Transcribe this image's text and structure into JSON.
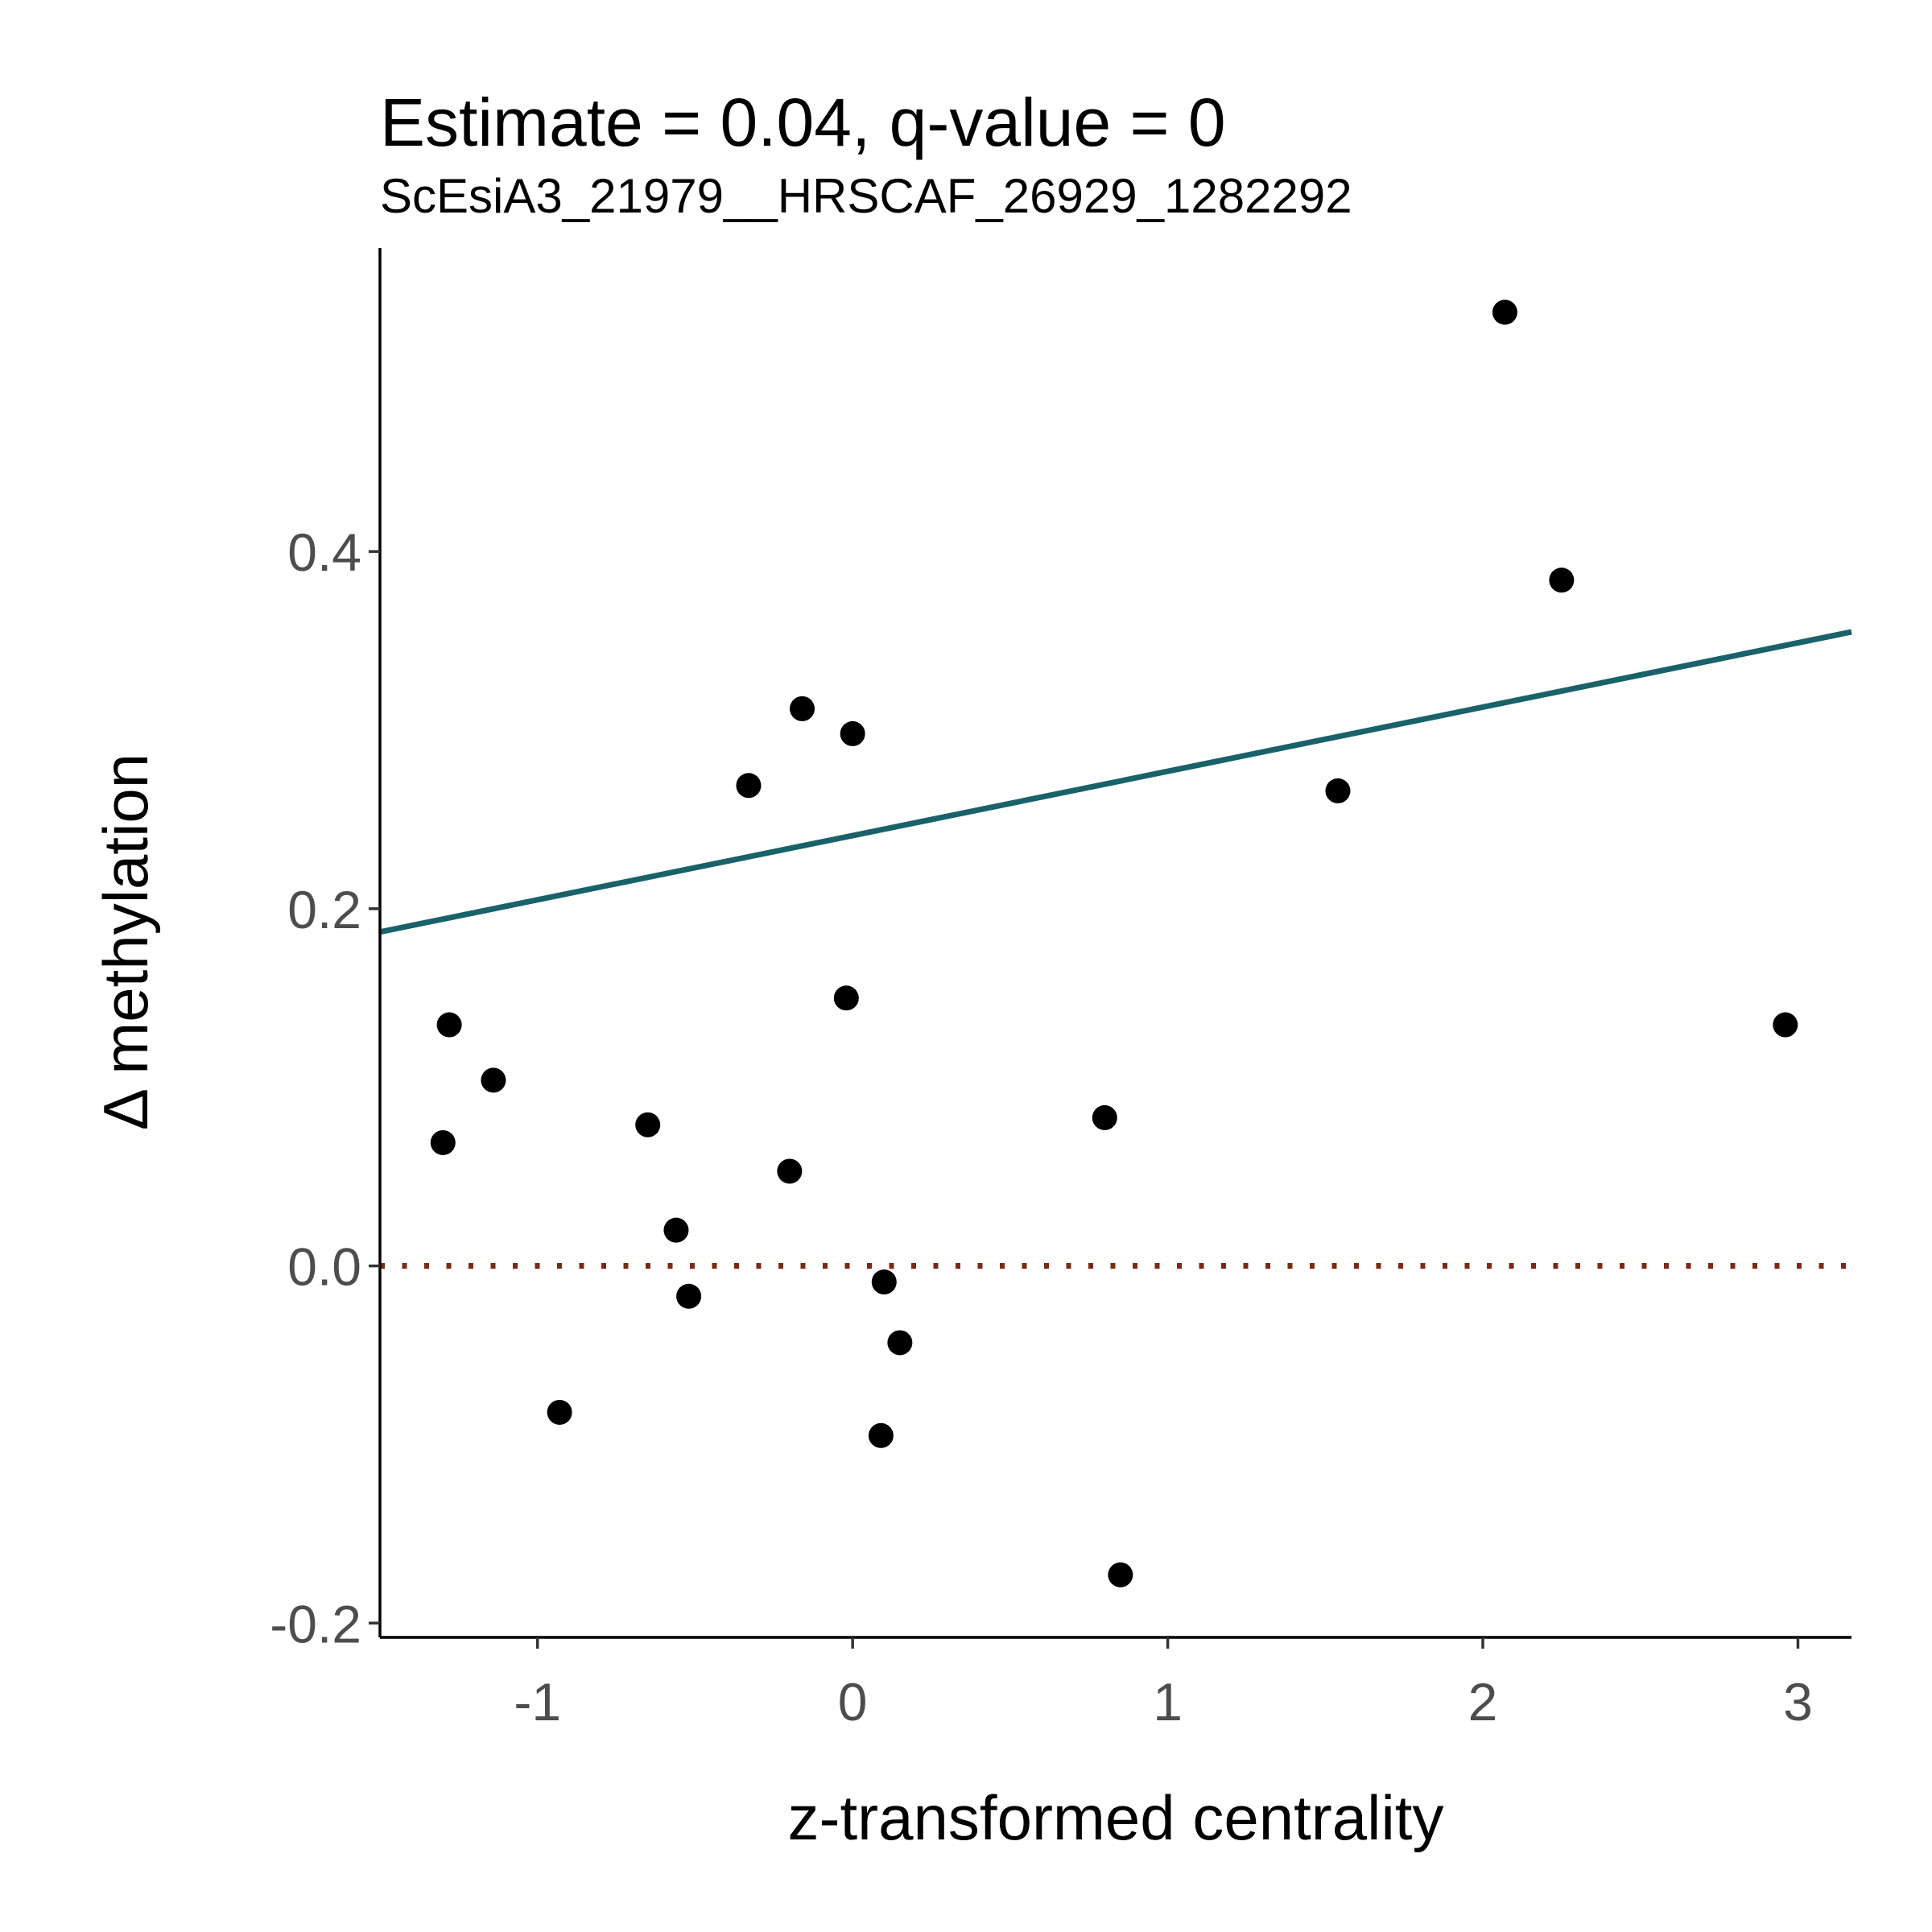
{
  "chart_data": {
    "type": "scatter",
    "title": "Estimate = 0.04, q-value = 0",
    "subtitle": "ScEsiA3_21979__HRSCAF_26929_1282292",
    "xlabel": "z-transformed centrality",
    "ylabel": "Δ methylation",
    "xlim": [
      -1.5,
      3.17
    ],
    "ylim": [
      -0.208,
      0.57
    ],
    "x_ticks": [
      -1,
      0,
      1,
      2,
      3
    ],
    "x_tick_labels": [
      "-1",
      "0",
      "1",
      "2",
      "3"
    ],
    "y_ticks": [
      -0.2,
      0.0,
      0.2,
      0.4
    ],
    "y_tick_labels": [
      "-0.2",
      "0.0",
      "0.2",
      "0.4"
    ],
    "grid": false,
    "legend": "none",
    "points": [
      {
        "x": -1.28,
        "y": 0.135
      },
      {
        "x": -1.3,
        "y": 0.069
      },
      {
        "x": -1.14,
        "y": 0.104
      },
      {
        "x": -0.93,
        "y": -0.082
      },
      {
        "x": -0.65,
        "y": 0.079
      },
      {
        "x": -0.56,
        "y": 0.02
      },
      {
        "x": -0.52,
        "y": -0.017
      },
      {
        "x": -0.33,
        "y": 0.269
      },
      {
        "x": -0.2,
        "y": 0.053
      },
      {
        "x": -0.16,
        "y": 0.312
      },
      {
        "x": -0.02,
        "y": 0.15
      },
      {
        "x": 0.0,
        "y": 0.298
      },
      {
        "x": 0.09,
        "y": -0.095
      },
      {
        "x": 0.1,
        "y": -0.009
      },
      {
        "x": 0.15,
        "y": -0.043
      },
      {
        "x": 0.8,
        "y": 0.083
      },
      {
        "x": 0.85,
        "y": -0.173
      },
      {
        "x": 1.54,
        "y": 0.266
      },
      {
        "x": 2.07,
        "y": 0.534
      },
      {
        "x": 2.25,
        "y": 0.384
      },
      {
        "x": 2.96,
        "y": 0.135
      }
    ],
    "fit_line": {
      "x": [
        -1.5,
        3.17
      ],
      "y": [
        0.187,
        0.355
      ],
      "color": "#19626a"
    },
    "reference_line": {
      "y": 0.0,
      "style": "dotted",
      "color": "#7a2a14"
    },
    "point_color": "#000000"
  }
}
